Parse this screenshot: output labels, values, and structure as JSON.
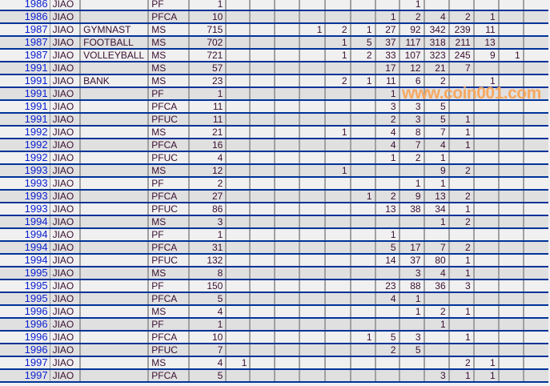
{
  "table": {
    "rows": [
      {
        "year": "1986",
        "code": "JIAO",
        "name": "",
        "type": "PF",
        "total": "1",
        "cols": [
          "",
          "",
          "",
          "",
          "",
          "",
          "",
          "1",
          "",
          "",
          "",
          "",
          ""
        ]
      },
      {
        "year": "1986",
        "code": "JIAO",
        "name": "",
        "type": "PFCA",
        "total": "10",
        "cols": [
          "",
          "",
          "",
          "",
          "",
          "",
          "1",
          "2",
          "4",
          "2",
          "1",
          "",
          ""
        ]
      },
      {
        "year": "1987",
        "code": "JIAO",
        "name": "GYMNAST",
        "type": "MS",
        "total": "715",
        "cols": [
          "",
          "",
          "",
          "1",
          "2",
          "1",
          "27",
          "92",
          "342",
          "239",
          "11",
          "",
          ""
        ]
      },
      {
        "year": "1987",
        "code": "JIAO",
        "name": "FOOTBALL",
        "type": "MS",
        "total": "702",
        "cols": [
          "",
          "",
          "",
          "",
          "1",
          "5",
          "37",
          "117",
          "318",
          "211",
          "13",
          "",
          ""
        ]
      },
      {
        "year": "1987",
        "code": "JIAO",
        "name": "VOLLEYBALL",
        "type": "MS",
        "total": "721",
        "cols": [
          "",
          "",
          "",
          "",
          "1",
          "2",
          "33",
          "107",
          "323",
          "245",
          "9",
          "1",
          ""
        ]
      },
      {
        "year": "1991",
        "code": "JIAO",
        "name": "",
        "type": "MS",
        "total": "57",
        "cols": [
          "",
          "",
          "",
          "",
          "",
          "",
          "17",
          "12",
          "21",
          "7",
          "",
          "",
          ""
        ]
      },
      {
        "year": "1991",
        "code": "JIAO",
        "name": "BANK",
        "type": "MS",
        "total": "23",
        "cols": [
          "",
          "",
          "",
          "",
          "2",
          "1",
          "11",
          "6",
          "2",
          "",
          "1",
          "",
          ""
        ]
      },
      {
        "year": "1991",
        "code": "JIAO",
        "name": "",
        "type": "PF",
        "total": "1",
        "cols": [
          "",
          "",
          "",
          "",
          "",
          "",
          "1",
          "",
          "",
          "",
          "",
          "",
          ""
        ]
      },
      {
        "year": "1991",
        "code": "JIAO",
        "name": "",
        "type": "PFCA",
        "total": "11",
        "cols": [
          "",
          "",
          "",
          "",
          "",
          "",
          "3",
          "3",
          "5",
          "",
          "",
          "",
          ""
        ]
      },
      {
        "year": "1991",
        "code": "JIAO",
        "name": "",
        "type": "PFUC",
        "total": "11",
        "cols": [
          "",
          "",
          "",
          "",
          "",
          "",
          "2",
          "3",
          "5",
          "1",
          "",
          "",
          ""
        ]
      },
      {
        "year": "1992",
        "code": "JIAO",
        "name": "",
        "type": "MS",
        "total": "21",
        "cols": [
          "",
          "",
          "",
          "",
          "1",
          "",
          "4",
          "8",
          "7",
          "1",
          "",
          "",
          ""
        ]
      },
      {
        "year": "1992",
        "code": "JIAO",
        "name": "",
        "type": "PFCA",
        "total": "16",
        "cols": [
          "",
          "",
          "",
          "",
          "",
          "",
          "4",
          "7",
          "4",
          "1",
          "",
          "",
          ""
        ]
      },
      {
        "year": "1992",
        "code": "JIAO",
        "name": "",
        "type": "PFUC",
        "total": "4",
        "cols": [
          "",
          "",
          "",
          "",
          "",
          "",
          "1",
          "2",
          "1",
          "",
          "",
          "",
          ""
        ]
      },
      {
        "year": "1993",
        "code": "JIAO",
        "name": "",
        "type": "MS",
        "total": "12",
        "cols": [
          "",
          "",
          "",
          "",
          "1",
          "",
          "",
          "",
          "9",
          "2",
          "",
          "",
          ""
        ]
      },
      {
        "year": "1993",
        "code": "JIAO",
        "name": "",
        "type": "PF",
        "total": "2",
        "cols": [
          "",
          "",
          "",
          "",
          "",
          "",
          "",
          "1",
          "1",
          "",
          "",
          "",
          ""
        ]
      },
      {
        "year": "1993",
        "code": "JIAO",
        "name": "",
        "type": "PFCA",
        "total": "27",
        "cols": [
          "",
          "",
          "",
          "",
          "",
          "1",
          "2",
          "9",
          "13",
          "2",
          "",
          "",
          ""
        ]
      },
      {
        "year": "1993",
        "code": "JIAO",
        "name": "",
        "type": "PFUC",
        "total": "86",
        "cols": [
          "",
          "",
          "",
          "",
          "",
          "",
          "13",
          "38",
          "34",
          "1",
          "",
          "",
          ""
        ]
      },
      {
        "year": "1994",
        "code": "JIAO",
        "name": "",
        "type": "MS",
        "total": "3",
        "cols": [
          "",
          "",
          "",
          "",
          "",
          "",
          "",
          "",
          "1",
          "2",
          "",
          "",
          ""
        ]
      },
      {
        "year": "1994",
        "code": "JIAO",
        "name": "",
        "type": "PF",
        "total": "1",
        "cols": [
          "",
          "",
          "",
          "",
          "",
          "",
          "1",
          "",
          "",
          "",
          "",
          "",
          ""
        ]
      },
      {
        "year": "1994",
        "code": "JIAO",
        "name": "",
        "type": "PFCA",
        "total": "31",
        "cols": [
          "",
          "",
          "",
          "",
          "",
          "",
          "5",
          "17",
          "7",
          "2",
          "",
          "",
          ""
        ]
      },
      {
        "year": "1994",
        "code": "JIAO",
        "name": "",
        "type": "PFUC",
        "total": "132",
        "cols": [
          "",
          "",
          "",
          "",
          "",
          "",
          "14",
          "37",
          "80",
          "1",
          "",
          "",
          ""
        ]
      },
      {
        "year": "1995",
        "code": "JIAO",
        "name": "",
        "type": "MS",
        "total": "8",
        "cols": [
          "",
          "",
          "",
          "",
          "",
          "",
          "",
          "3",
          "4",
          "1",
          "",
          "",
          ""
        ]
      },
      {
        "year": "1995",
        "code": "JIAO",
        "name": "",
        "type": "PF",
        "total": "150",
        "cols": [
          "",
          "",
          "",
          "",
          "",
          "",
          "23",
          "88",
          "36",
          "3",
          "",
          "",
          ""
        ]
      },
      {
        "year": "1995",
        "code": "JIAO",
        "name": "",
        "type": "PFCA",
        "total": "5",
        "cols": [
          "",
          "",
          "",
          "",
          "",
          "",
          "4",
          "1",
          "",
          "",
          "",
          "",
          ""
        ]
      },
      {
        "year": "1996",
        "code": "JIAO",
        "name": "",
        "type": "MS",
        "total": "4",
        "cols": [
          "",
          "",
          "",
          "",
          "",
          "",
          "",
          "1",
          "2",
          "1",
          "",
          "",
          ""
        ]
      },
      {
        "year": "1996",
        "code": "JIAO",
        "name": "",
        "type": "PF",
        "total": "1",
        "cols": [
          "",
          "",
          "",
          "",
          "",
          "",
          "",
          "",
          "1",
          "",
          "",
          "",
          ""
        ]
      },
      {
        "year": "1996",
        "code": "JIAO",
        "name": "",
        "type": "PFCA",
        "total": "10",
        "cols": [
          "",
          "",
          "",
          "",
          "",
          "1",
          "5",
          "3",
          "",
          "1",
          "",
          "",
          ""
        ]
      },
      {
        "year": "1996",
        "code": "JIAO",
        "name": "",
        "type": "PFUC",
        "total": "7",
        "cols": [
          "",
          "",
          "",
          "",
          "",
          "",
          "2",
          "5",
          "",
          "",
          "",
          "",
          ""
        ]
      },
      {
        "year": "1997",
        "code": "JIAO",
        "name": "",
        "type": "MS",
        "total": "4",
        "cols": [
          "1",
          "",
          "",
          "",
          "",
          "",
          "",
          "",
          "",
          "2",
          "1",
          "",
          ""
        ]
      },
      {
        "year": "1997",
        "code": "JIAO",
        "name": "",
        "type": "PFCA",
        "total": "5",
        "cols": [
          "",
          "",
          "",
          "",
          "",
          "",
          "",
          "",
          "3",
          "1",
          "1",
          "",
          ""
        ]
      }
    ]
  },
  "watermark": "www.coin001.com",
  "colors": {
    "link": "#0a1fd0",
    "row_divider": "#003399",
    "row_light": "#f0f0f0",
    "row_dark": "#e0e0e0",
    "watermark": "#f6a860"
  }
}
